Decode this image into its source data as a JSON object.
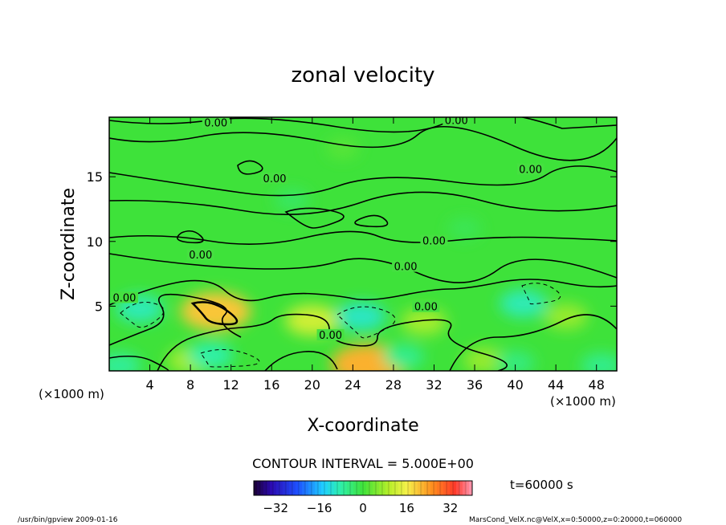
{
  "chart_data": {
    "type": "heatmap",
    "title": "zonal velocity",
    "xlabel": "X-coordinate",
    "ylabel": "Z-coordinate",
    "x_unit": "(×1000 m)",
    "y_unit": "(×1000 m)",
    "xlim": [
      0,
      50
    ],
    "ylim": [
      0,
      19.6
    ],
    "x_ticks": [
      4,
      8,
      12,
      16,
      20,
      24,
      28,
      32,
      36,
      40,
      44,
      48
    ],
    "y_ticks": [
      5,
      10,
      15
    ],
    "contour_interval_label": "CONTOUR INTERVAL = 5.000E+00",
    "contour_labels": [
      {
        "text": "0.00",
        "x": 10.5,
        "z": 19.0
      },
      {
        "text": "0.00",
        "x": 34.2,
        "z": 19.2
      },
      {
        "text": "0.00",
        "x": 41.5,
        "z": 15.4
      },
      {
        "text": "0.00",
        "x": 16.3,
        "z": 14.7
      },
      {
        "text": "0.00",
        "x": 32.0,
        "z": 9.9
      },
      {
        "text": "0.00",
        "x": 9.0,
        "z": 8.8
      },
      {
        "text": "0.00",
        "x": 29.2,
        "z": 7.9
      },
      {
        "text": "0.00",
        "x": 1.5,
        "z": 5.5
      },
      {
        "text": "0.00",
        "x": 31.2,
        "z": 4.8
      },
      {
        "text": "0.00",
        "x": 21.8,
        "z": 2.6
      }
    ],
    "colorbar": {
      "range": [
        -40,
        40
      ],
      "ticks": [
        -32,
        -16,
        0,
        16,
        32
      ]
    },
    "time_label": "t=60000  s",
    "field_features": [
      {
        "x": 10.5,
        "z": 4.6,
        "value": 20
      },
      {
        "x": 25.5,
        "z": 0.5,
        "value": 22
      },
      {
        "x": 20.0,
        "z": 3.9,
        "value": 12
      },
      {
        "x": 31.0,
        "z": 3.8,
        "value": 8
      },
      {
        "x": 8.0,
        "z": 0.8,
        "value": 8
      },
      {
        "x": 37.0,
        "z": 0.8,
        "value": 7
      },
      {
        "x": 45.0,
        "z": 4.2,
        "value": 7
      },
      {
        "x": 3.0,
        "z": 4.8,
        "value": -9
      },
      {
        "x": 24.8,
        "z": 4.2,
        "value": -10
      },
      {
        "x": 10.0,
        "z": 1.2,
        "value": -8
      },
      {
        "x": 29.0,
        "z": 1.1,
        "value": -6
      },
      {
        "x": 40.8,
        "z": 5.2,
        "value": -9
      },
      {
        "x": 40.0,
        "z": 0.6,
        "value": -5
      },
      {
        "x": 1.0,
        "z": 0.4,
        "value": -7
      },
      {
        "x": 48.5,
        "z": 0.4,
        "value": -6
      },
      {
        "x": 18.0,
        "z": 13.2,
        "value": -3
      },
      {
        "x": 35.0,
        "z": 11.0,
        "value": -2
      },
      {
        "x": 23.0,
        "z": 17.2,
        "value": 2
      }
    ]
  },
  "footer": {
    "left": "/usr/bin/gpview   2009-01-16",
    "right": "MarsCond_VelX.nc@VelX,x=0:50000,z=0:20000,t=060000"
  }
}
